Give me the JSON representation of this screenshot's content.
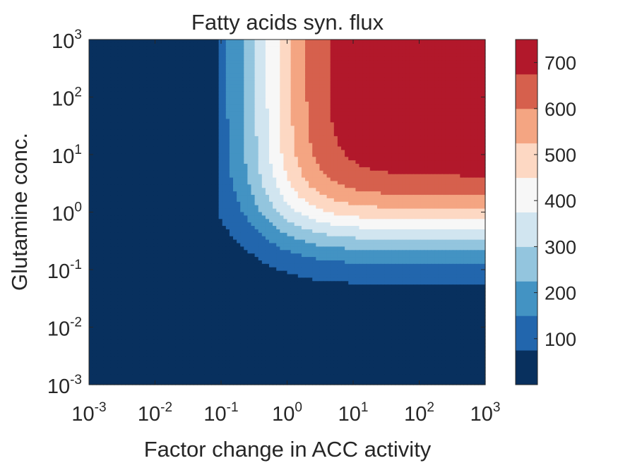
{
  "chart_data": {
    "type": "heatmap",
    "title": "Fatty acids syn. flux",
    "xlabel": "Factor change in ACC activity",
    "ylabel": "Glutamine conc.",
    "x_scale": "log",
    "y_scale": "log",
    "xlim": [
      0.001,
      1000
    ],
    "ylim": [
      0.001,
      1000
    ],
    "x_ticks": [
      {
        "base": "10",
        "exp": "-3"
      },
      {
        "base": "10",
        "exp": "-2"
      },
      {
        "base": "10",
        "exp": "-1"
      },
      {
        "base": "10",
        "exp": "0"
      },
      {
        "base": "10",
        "exp": "1"
      },
      {
        "base": "10",
        "exp": "2"
      },
      {
        "base": "10",
        "exp": "3"
      }
    ],
    "y_ticks": [
      {
        "base": "10",
        "exp": "-3"
      },
      {
        "base": "10",
        "exp": "-2"
      },
      {
        "base": "10",
        "exp": "-1"
      },
      {
        "base": "10",
        "exp": "0"
      },
      {
        "base": "10",
        "exp": "1"
      },
      {
        "base": "10",
        "exp": "2"
      },
      {
        "base": "10",
        "exp": "3"
      }
    ],
    "colorbar": {
      "range": [
        0,
        750
      ],
      "levels": [
        0,
        75,
        150,
        225,
        300,
        375,
        450,
        525,
        600,
        675,
        750
      ],
      "colors": [
        "#08305e",
        "#2266ad",
        "#4393c3",
        "#93c5de",
        "#d1e5f0",
        "#f7f7f7",
        "#fdd8c3",
        "#f4a582",
        "#d6604d",
        "#b2182b",
        "#67001f"
      ],
      "ticks": [
        "100",
        "200",
        "300",
        "400",
        "500",
        "600",
        "700"
      ],
      "tick_values": [
        100,
        200,
        300,
        400,
        500,
        600,
        700
      ]
    },
    "model": {
      "vmax": 755,
      "x_half_saturation": 0.5,
      "y_half_saturation": 0.5,
      "x_cutoff": 0.09,
      "y_cutoff": 0.05
    }
  }
}
